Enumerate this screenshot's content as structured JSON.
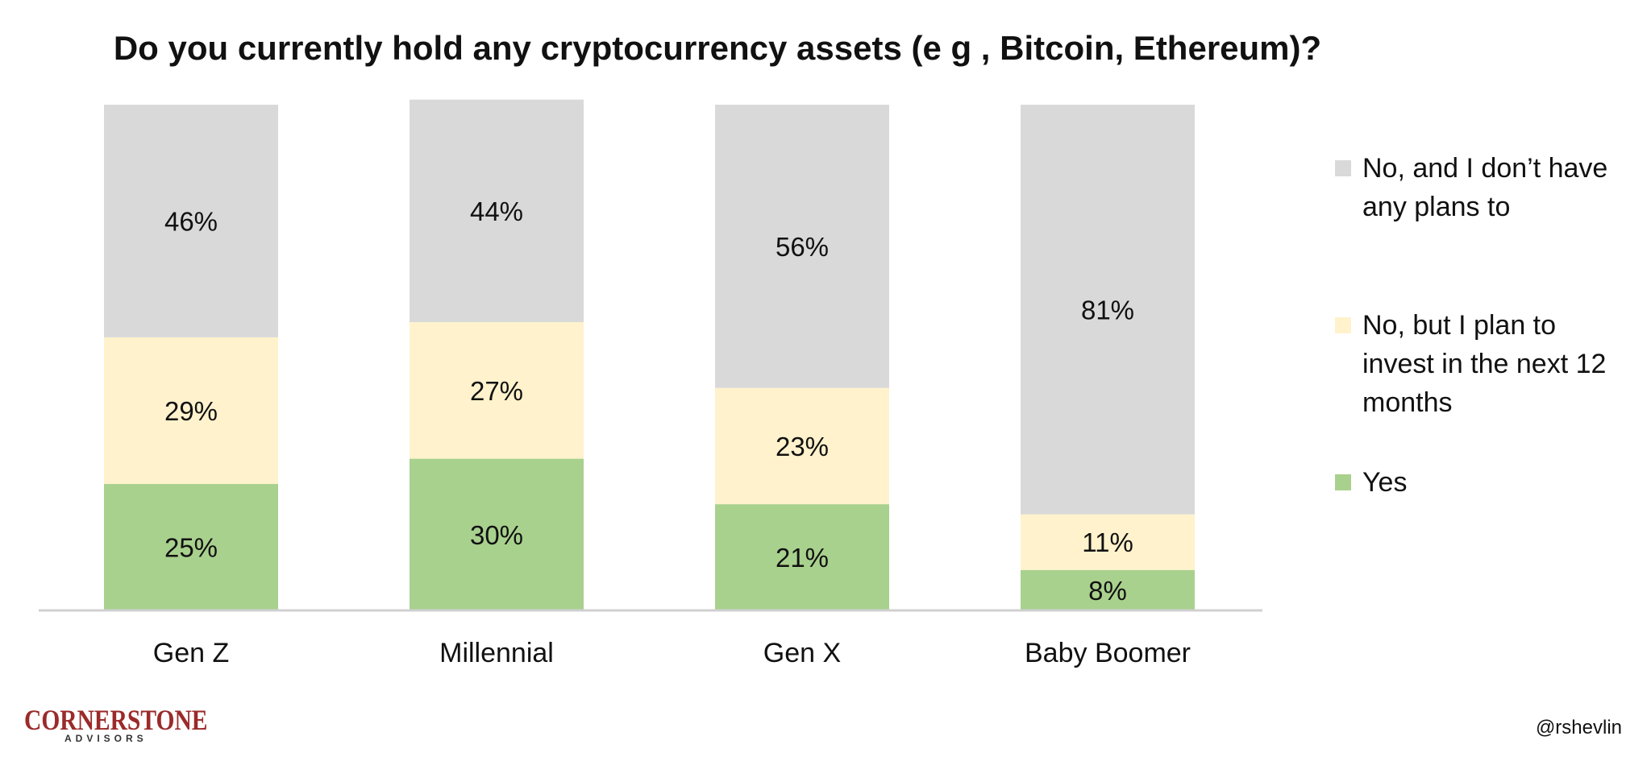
{
  "chart_data": {
    "type": "bar",
    "stacked": true,
    "title": "Do you currently hold any cryptocurrency assets (e g , Bitcoin, Ethereum)?",
    "categories": [
      "Gen Z",
      "Millennial",
      "Gen X",
      "Baby Boomer"
    ],
    "series": [
      {
        "name": "Yes",
        "values": [
          25,
          30,
          21,
          8
        ],
        "labels": [
          "25%",
          "30%",
          "21%",
          "8%"
        ],
        "color": "#a9d18e"
      },
      {
        "name": "No, but I plan to invest in the next 12 months",
        "values": [
          29,
          27,
          23,
          11
        ],
        "labels": [
          "29%",
          "27%",
          "23%",
          "11%"
        ],
        "color": "#fff2cc"
      },
      {
        "name": "No, and I don’t have any plans to",
        "values": [
          46,
          44,
          56,
          81
        ],
        "labels": [
          "46%",
          "44%",
          "56%",
          "81%"
        ],
        "color": "#d9d9d9"
      }
    ],
    "legend": {
      "position": "right",
      "items": [
        {
          "lines": [
            "No, and I don’t have",
            "any plans to"
          ],
          "color": "#d9d9d9"
        },
        {
          "lines": [
            "No, but I plan to",
            "invest in the next 12",
            "months"
          ],
          "color": "#fff2cc"
        },
        {
          "lines": [
            "Yes"
          ],
          "color": "#a9d18e"
        }
      ]
    },
    "ylim": [
      0,
      100
    ],
    "grid": false
  },
  "branding": {
    "logo_text": "CORNERSTONE",
    "logo_subtext": "ADVISORS",
    "logo_color": "#9b2a2a",
    "handle": "@rshevlin"
  }
}
